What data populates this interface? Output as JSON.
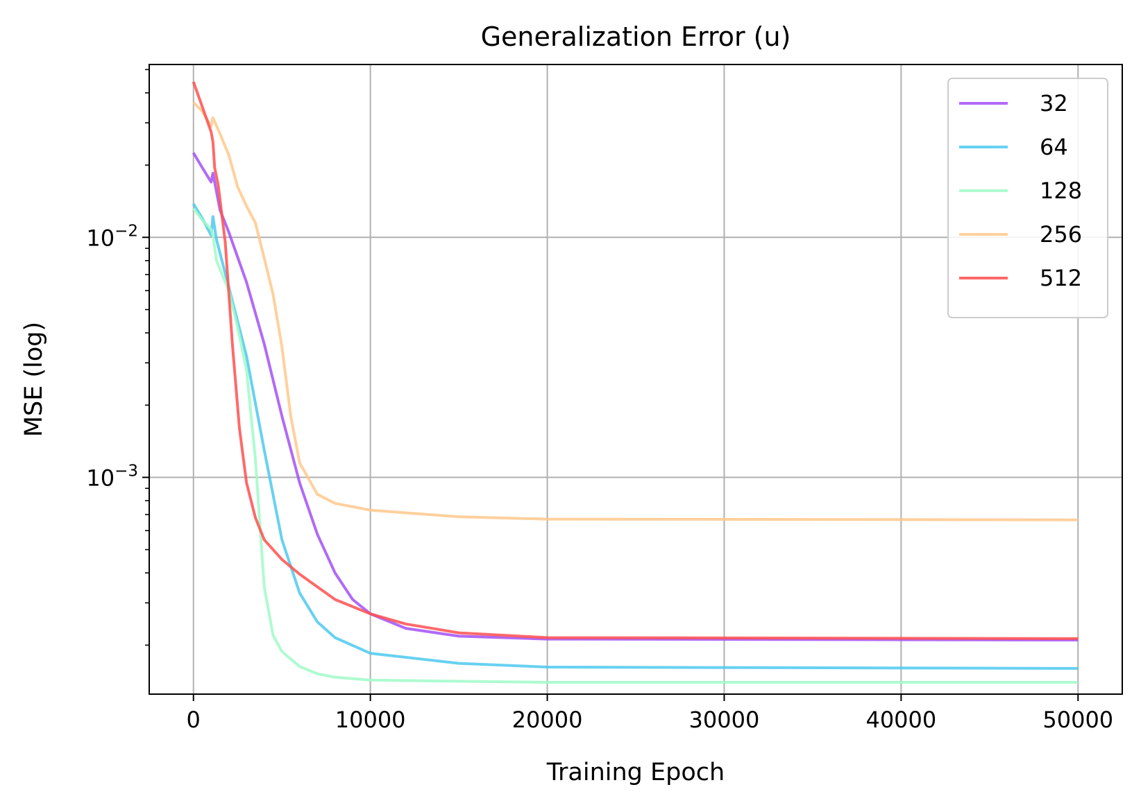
{
  "chart_data": {
    "type": "line",
    "title": "Generalization Error (u)",
    "xlabel": "Training Epoch",
    "ylabel": "MSE (log)",
    "xlim": [
      -2500,
      52500
    ],
    "ylim": [
      0.000125,
      0.0525
    ],
    "yscale": "log",
    "grid": true,
    "legend_position": "top-right",
    "x_ticks": [
      0,
      10000,
      20000,
      30000,
      40000,
      50000
    ],
    "x_tick_labels": [
      "0",
      "10000",
      "20000",
      "30000",
      "40000",
      "50000"
    ],
    "y_major_ticks": [
      0.001,
      0.01
    ],
    "y_tick_labels": [
      {
        "base": "10",
        "exp": "−3"
      },
      {
        "base": "10",
        "exp": "−2"
      }
    ],
    "series": [
      {
        "name": "32",
        "color": "#a350f5",
        "points": [
          [
            0,
            0.0225
          ],
          [
            500,
            0.0195
          ],
          [
            1000,
            0.017
          ],
          [
            1100,
            0.0185
          ],
          [
            1500,
            0.013
          ],
          [
            2000,
            0.0105
          ],
          [
            3000,
            0.0065
          ],
          [
            4000,
            0.0036
          ],
          [
            5000,
            0.0018
          ],
          [
            6000,
            0.00095
          ],
          [
            7000,
            0.00058
          ],
          [
            8000,
            0.0004
          ],
          [
            9000,
            0.00031
          ],
          [
            10000,
            0.00027
          ],
          [
            12000,
            0.000235
          ],
          [
            15000,
            0.000218
          ],
          [
            20000,
            0.000212
          ],
          [
            50000,
            0.00021
          ]
        ]
      },
      {
        "name": "64",
        "color": "#4cc9ee",
        "points": [
          [
            0,
            0.0138
          ],
          [
            500,
            0.012
          ],
          [
            1000,
            0.0102
          ],
          [
            1100,
            0.0122
          ],
          [
            1300,
            0.0098
          ],
          [
            2000,
            0.0062
          ],
          [
            3000,
            0.0032
          ],
          [
            4000,
            0.0013
          ],
          [
            5000,
            0.00055
          ],
          [
            6000,
            0.00033
          ],
          [
            7000,
            0.00025
          ],
          [
            8000,
            0.000215
          ],
          [
            10000,
            0.000185
          ],
          [
            15000,
            0.000168
          ],
          [
            20000,
            0.000162
          ],
          [
            50000,
            0.00016
          ]
        ]
      },
      {
        "name": "128",
        "color": "#a0fac8",
        "points": [
          [
            0,
            0.0132
          ],
          [
            500,
            0.0118
          ],
          [
            1000,
            0.0108
          ],
          [
            1100,
            0.0102
          ],
          [
            1300,
            0.008
          ],
          [
            2000,
            0.006
          ],
          [
            2500,
            0.0042
          ],
          [
            3000,
            0.0028
          ],
          [
            3500,
            0.0012
          ],
          [
            4000,
            0.00035
          ],
          [
            4500,
            0.00022
          ],
          [
            5000,
            0.000188
          ],
          [
            6000,
            0.000163
          ],
          [
            7000,
            0.000152
          ],
          [
            8000,
            0.000147
          ],
          [
            10000,
            0.000143
          ],
          [
            20000,
            0.00014
          ],
          [
            50000,
            0.00014
          ]
        ]
      },
      {
        "name": "256",
        "color": "#ffc88c",
        "points": [
          [
            0,
            0.0365
          ],
          [
            500,
            0.0335
          ],
          [
            1000,
            0.029
          ],
          [
            1100,
            0.0315
          ],
          [
            1500,
            0.027
          ],
          [
            2000,
            0.022
          ],
          [
            2500,
            0.0162
          ],
          [
            3000,
            0.0135
          ],
          [
            3500,
            0.0115
          ],
          [
            4000,
            0.0082
          ],
          [
            4500,
            0.0058
          ],
          [
            5000,
            0.0035
          ],
          [
            5500,
            0.0018
          ],
          [
            6000,
            0.00115
          ],
          [
            7000,
            0.00085
          ],
          [
            8000,
            0.00078
          ],
          [
            10000,
            0.00073
          ],
          [
            15000,
            0.000685
          ],
          [
            20000,
            0.00067
          ],
          [
            50000,
            0.000665
          ]
        ]
      },
      {
        "name": "512",
        "color": "#ff4f4f",
        "points": [
          [
            0,
            0.0445
          ],
          [
            500,
            0.035
          ],
          [
            1000,
            0.0275
          ],
          [
            1100,
            0.025
          ],
          [
            1200,
            0.0195
          ],
          [
            1400,
            0.0165
          ],
          [
            1800,
            0.0095
          ],
          [
            2200,
            0.0036
          ],
          [
            2600,
            0.0016
          ],
          [
            3000,
            0.00095
          ],
          [
            3500,
            0.00068
          ],
          [
            4000,
            0.00055
          ],
          [
            5000,
            0.000455
          ],
          [
            6000,
            0.000395
          ],
          [
            8000,
            0.00031
          ],
          [
            10000,
            0.00027
          ],
          [
            12000,
            0.000245
          ],
          [
            15000,
            0.000225
          ],
          [
            20000,
            0.000215
          ],
          [
            50000,
            0.000213
          ]
        ]
      }
    ]
  }
}
